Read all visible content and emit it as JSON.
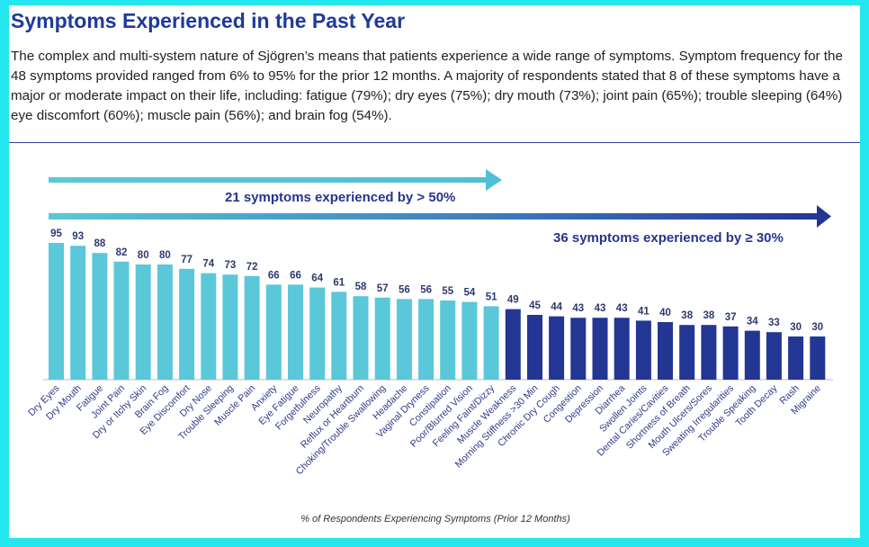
{
  "title": "Symptoms Experienced in the Past Year",
  "intro": "The complex and multi-system nature of Sjögren’s means that patients experience a wide range of symptoms. Symptom frequency for the 48 symptoms provided ranged from 6% to 95% for the prior 12 months. A majority of respondents stated that 8 of these symptoms have a major or moderate impact on their life, including: fatigue (79%); dry eyes (75%); dry mouth (73%); joint pain (65%); trouble sleeping (64%) eye discomfort (60%); muscle pain (56%); and brain fog (54%).",
  "colors": {
    "light_bar": "#5ac8d8",
    "dark_bar": "#243694",
    "title": "#1f3a99",
    "frame": "#23e6ee"
  },
  "chart_data": {
    "type": "bar",
    "title": "",
    "xlabel": "% of Respondents Experiencing Symptoms (Prior 12 Months)",
    "ylabel": "",
    "ylim": [
      0,
      100
    ],
    "categories": [
      "Dry Eyes",
      "Dry Mouth",
      "Fatigue",
      "Joint Pain",
      "Dry or Itchy Skin",
      "Brain Fog",
      "Eye Discomfort",
      "Dry Nose",
      "Trouble Sleeping",
      "Muscle Pain",
      "Anxiety",
      "Eye Fatigue",
      "Forgetfulness",
      "Neuropathy",
      "Reflux or Heartburn",
      "Choking/Trouble Swallowing",
      "Headache",
      "Vaginal Dryness",
      "Constipation",
      "Poor/Blurred Vision",
      "Feeling Faint/Dizzy",
      "Muscle Weakness",
      "Morning Stiffness >30 Min",
      "Chronic Dry Cough",
      "Congestion",
      "Depression",
      "Diarrhea",
      "Swollen Joints",
      "Dental Caries/Cavities",
      "Shortness of Breath",
      "Mouth Ulcers/Sores",
      "Sweating Irregularities",
      "Trouble Speaking",
      "Tooth Decay",
      "Rash",
      "Migraine"
    ],
    "values": [
      95,
      93,
      88,
      82,
      80,
      80,
      77,
      74,
      73,
      72,
      66,
      66,
      64,
      61,
      58,
      57,
      56,
      56,
      55,
      54,
      51,
      49,
      45,
      44,
      43,
      43,
      43,
      41,
      40,
      38,
      38,
      37,
      34,
      33,
      30,
      30
    ],
    "highlight_threshold": 50,
    "annotations": [
      "21 symptoms experienced by > 50%",
      "36 symptoms experienced by ≥ 30%"
    ]
  }
}
